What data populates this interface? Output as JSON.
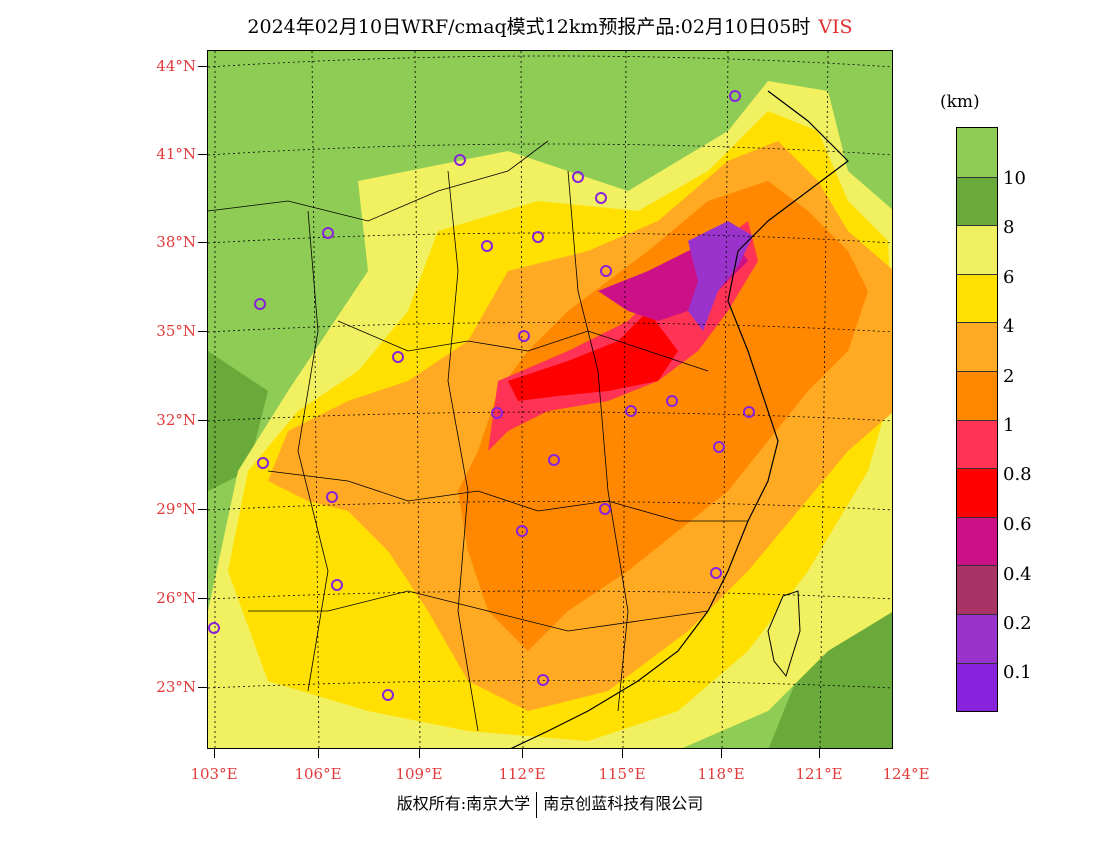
{
  "title": {
    "main": "2024年02月10日WRF/cmaq模式12km预报产品:02月10日05时",
    "variable": "VIS"
  },
  "map": {
    "lat_labels": [
      "44°N",
      "41°N",
      "38°N",
      "35°N",
      "32°N",
      "29°N",
      "26°N",
      "23°N"
    ],
    "lon_labels": [
      "103°E",
      "106°E",
      "109°E",
      "112°E",
      "115°E",
      "118°E",
      "121°E",
      "124°E"
    ],
    "extent": {
      "lon_min": 103,
      "lon_max": 124,
      "lat_min": 21,
      "lat_max": 44.5
    },
    "colors": {
      "ocean_background": "#8fcc55",
      "green_dark": "#6aaa3a",
      "yellow_light": "#f0f060",
      "yellow": "#ffe000",
      "orange_light": "#ffaa22",
      "orange": "#ff8800",
      "red_pink": "#ff3355",
      "red": "#ff0000",
      "magenta": "#cc1188",
      "purple_dark": "#aa3366",
      "purple": "#9933cc",
      "violet": "#8822dd",
      "station_marker": "#8822dd"
    }
  },
  "colorbar": {
    "unit": "(km)",
    "swatches": [
      "#8fcc55",
      "#6aaa3a",
      "#f0f060",
      "#ffe000",
      "#ffaa22",
      "#ff8800",
      "#ff3355",
      "#ff0000",
      "#cc1188",
      "#aa3366",
      "#9933cc",
      "#8822dd"
    ],
    "labels": [
      "10",
      "8",
      "6",
      "4",
      "2",
      "1",
      "0.8",
      "0.6",
      "0.4",
      "0.2",
      "0.1"
    ]
  },
  "footer": {
    "left": "版权所有:南京大学",
    "right": "南京创蓝科技有限公司"
  }
}
